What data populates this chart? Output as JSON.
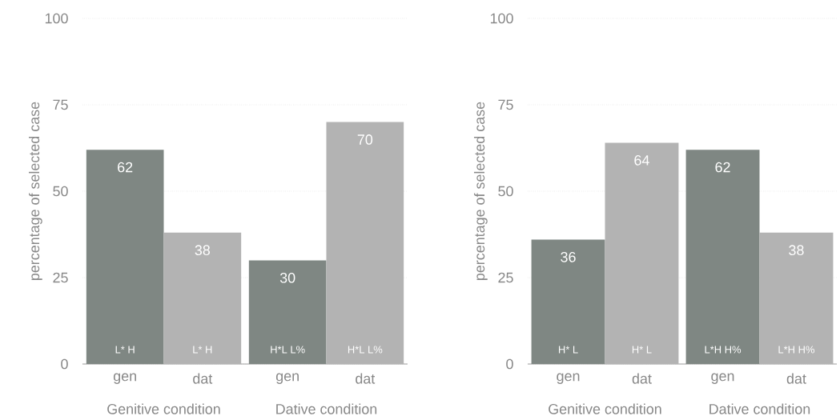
{
  "chart_data": [
    {
      "type": "bar",
      "ylabel": "percentage of selected case",
      "categories": [
        "gen",
        "dat",
        "gen",
        "dat"
      ],
      "values": [
        62,
        38,
        30,
        70
      ],
      "colors": [
        "#7f8783",
        "#b3b3b3",
        "#7f8783",
        "#b3b3b3"
      ],
      "ylim": [
        0,
        100
      ],
      "yticks": [
        0,
        25,
        50,
        75,
        100
      ],
      "grid": "y",
      "data_labels": true,
      "annotations": [
        "L* H",
        "L* H",
        "H*L L%",
        "H*L L%",
        "Genitive condition",
        "Dative condition"
      ]
    },
    {
      "type": "bar",
      "ylabel": "percentage of selected case",
      "categories": [
        "gen",
        "dat",
        "gen",
        "dat"
      ],
      "values": [
        36,
        64,
        62,
        38
      ],
      "colors": [
        "#7f8783",
        "#b3b3b3",
        "#7f8783",
        "#b3b3b3"
      ],
      "ylim": [
        0,
        100
      ],
      "yticks": [
        0,
        25,
        50,
        75,
        100
      ],
      "grid": "y",
      "data_labels": true,
      "annotations": [
        "H* L",
        "H* L",
        "L*H H%",
        "L*H H%",
        "Genitive condition",
        "Dative condition"
      ]
    }
  ]
}
